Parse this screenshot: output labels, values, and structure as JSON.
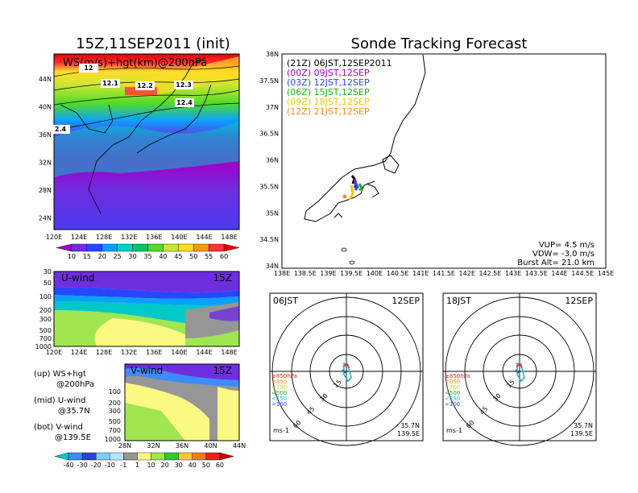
{
  "left_title": "15Z,11SEP2011 (init)",
  "right_title": "Sonde Tracking Forecast",
  "map_panel": {
    "label": "WS(m/s)+hgt(km)@200hPa",
    "x_ticks": [
      "120E",
      "124E",
      "128E",
      "132E",
      "136E",
      "140E",
      "144E",
      "148E"
    ],
    "y_ticks": [
      "44N",
      "40N",
      "36N",
      "32N",
      "28N",
      "24N"
    ],
    "contour_labels": [
      "12",
      "12.1",
      "12.2",
      "12.3",
      "12.4",
      "2.4"
    ]
  },
  "ws_colorbar": {
    "labels": [
      "10",
      "15",
      "20",
      "25",
      "30",
      "35",
      "40",
      "45",
      "50",
      "55",
      "60"
    ],
    "colors": [
      "#a000c8",
      "#6e2ee0",
      "#2846ff",
      "#0aa0ff",
      "#00d2c8",
      "#00c864",
      "#50dc28",
      "#c8e632",
      "#ffdc28",
      "#ff9614",
      "#ff3232",
      "#e60000"
    ]
  },
  "uwind_panel": {
    "label": "U-wind",
    "time": "15Z",
    "y_ticks": [
      "30",
      "50",
      "100",
      "200",
      "300",
      "500",
      "700",
      "1000"
    ],
    "x_ticks": [
      "120E",
      "124E",
      "128E",
      "132E",
      "136E",
      "140E",
      "144E",
      "148E"
    ]
  },
  "vwind_panel": {
    "label": "V-wind",
    "time": "15Z",
    "y_ticks": [
      "200",
      "300",
      "500",
      "700",
      "1000",
      "100"
    ],
    "x_ticks": [
      "28N",
      "32N",
      "36N",
      "40N",
      "44N"
    ]
  },
  "legend_text": {
    "up": "(up) WS+hgt",
    "up2": "@200hPa",
    "mid": "(mid) U-wind",
    "mid2": "@35.7N",
    "bot": "(bot) V-wind",
    "bot2": "@139.5E"
  },
  "wind_colorbar": {
    "labels": [
      "-40",
      "-30",
      "-20",
      "-10",
      "-1",
      "1",
      "10",
      "20",
      "30",
      "40",
      "50",
      "60"
    ],
    "colors": [
      "#00c8c8",
      "#3c8cff",
      "#2846dc",
      "#7dcdff",
      "#b4e6ff",
      "#969696",
      "#fafa82",
      "#a0e650",
      "#32c832",
      "#ffc832",
      "#ff7814",
      "#f01e1e",
      "#c80000"
    ]
  },
  "track_panel": {
    "lat_ticks": [
      "38N",
      "37.5N",
      "37N",
      "36.5N",
      "36N",
      "35.5N",
      "35N",
      "34.5N",
      "34N"
    ],
    "lon_ticks": [
      "138E",
      "138.5E",
      "139E",
      "139.5E",
      "140E",
      "140.5E",
      "141E",
      "141.5E",
      "142E",
      "142.5E",
      "143E",
      "143.5E",
      "144E",
      "144.5E",
      "145E"
    ],
    "launches": [
      {
        "utc": "(21Z)",
        "jst": "06JST,12SEP2011",
        "color": "#000000"
      },
      {
        "utc": "(00Z)",
        "jst": "09JST,12SEP",
        "color": "#a000c8"
      },
      {
        "utc": "(03Z)",
        "jst": "12JST,12SEP",
        "color": "#2846ff"
      },
      {
        "utc": "(06Z)",
        "jst": "15JST,12SEP",
        "color": "#14b414"
      },
      {
        "utc": "(09Z)",
        "jst": "18JST,12SEP",
        "color": "#e6c800"
      },
      {
        "utc": "(12Z)",
        "jst": "21JST,12SEP",
        "color": "#f08c28"
      }
    ],
    "vup": "VUP= 4.5 m/s",
    "vdw": "VDW= -3.0 m/s",
    "burst": "Burst Alt= 21.0 km"
  },
  "polar_panels": [
    {
      "time": "06JST",
      "date": "12SEP",
      "lat": "35.7N",
      "lon": "139.5E",
      "unit": "ms-1"
    },
    {
      "time": "18JST",
      "date": "12SEP",
      "lat": "35.7N",
      "lon": "139.5E",
      "unit": "ms-1"
    }
  ],
  "polar_rings": [
    "15",
    "30",
    "45",
    "60"
  ],
  "polar_legend": [
    {
      "text": "≥850hPa",
      "color": "#e61e1e"
    },
    {
      "text": "<850",
      "color": "#ff8c14"
    },
    {
      "text": "<700",
      "color": "#e6c800"
    },
    {
      "text": "<500",
      "color": "#14b414"
    },
    {
      "text": "<250",
      "color": "#00b4c8"
    },
    {
      "text": "<100",
      "color": "#2846ff"
    }
  ]
}
